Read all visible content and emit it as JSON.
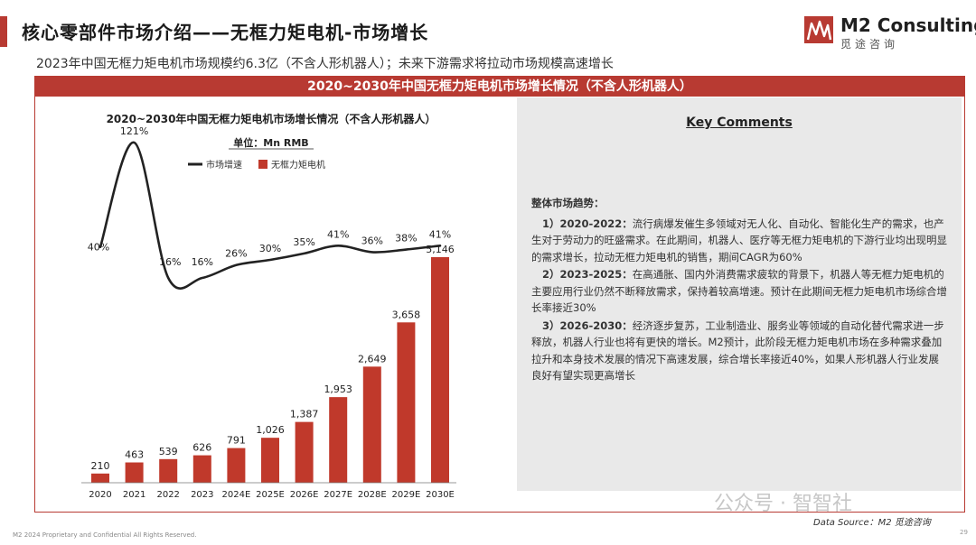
{
  "page": {
    "title": "核心零部件市场介绍——无框力矩电机-市场增长",
    "subtitle": "2023年中国无框力矩电机市场规模约6.3亿（不含人形机器人）；未来下游需求将拉动市场规模高速增长",
    "panel_title": "2020~2030年中国无框力矩电机市场增长情况（不含人形机器人）",
    "data_source": "Data Source：M2 觅途咨询",
    "footer": "M2 2024 Proprietary and Confidential All Rights Reserved.",
    "page_number": "29",
    "watermark": "公众号 · 智智社"
  },
  "logo": {
    "name": "M2 Consulting",
    "cn": "觅途咨询"
  },
  "colors": {
    "accent": "#b83a32",
    "bar": "#c0392b",
    "line": "#222222",
    "panel_bg": "#e9e9e9"
  },
  "chart_data": {
    "type": "bar",
    "title": "2020~2030年中国无框力矩电机市场增长情况（不含人形机器人）",
    "unit": "单位：Mn RMB",
    "categories": [
      "2020",
      "2021",
      "2022",
      "2023",
      "2024E",
      "2025E",
      "2026E",
      "2027E",
      "2028E",
      "2029E",
      "2030E"
    ],
    "series": [
      {
        "name": "无框力矩电机",
        "type": "bar",
        "values": [
          210,
          463,
          539,
          626,
          791,
          1026,
          1387,
          1953,
          2649,
          3658,
          5146
        ],
        "labels": [
          "210",
          "463",
          "539",
          "626",
          "791",
          "1,026",
          "1,387",
          "1,953",
          "2,649",
          "3,658",
          "5,146"
        ]
      },
      {
        "name": "市场增速",
        "type": "line",
        "values": [
          40,
          121,
          16,
          16,
          26,
          30,
          35,
          41,
          36,
          38,
          41
        ],
        "labels": [
          "40%",
          "121%",
          "16%",
          "16%",
          "26%",
          "30%",
          "35%",
          "41%",
          "36%",
          "38%",
          "41%"
        ]
      }
    ],
    "legend": [
      "市场增速",
      "无框力矩电机"
    ],
    "legend_position": "top-right",
    "grid": false
  },
  "comments": {
    "title": "Key Comments",
    "heading": "整体市场趋势：",
    "items": [
      {
        "label": "1）2020-2022：",
        "text": "流行病爆发催生多领域对无人化、自动化、智能化生产的需求，也产生对于劳动力的旺盛需求。在此期间，机器人、医疗等无框力矩电机的下游行业均出现明显的需求增长，拉动无框力矩电机的销售，期间CAGR为60%"
      },
      {
        "label": "2）2023-2025：",
        "text": "在高通胀、国内外消费需求疲软的背景下，机器人等无框力矩电机的主要应用行业仍然不断释放需求，保持着较高增速。预计在此期间无框力矩电机市场综合增长率接近30%"
      },
      {
        "label": "3）2026-2030：",
        "text": "经济逐步复苏，工业制造业、服务业等领域的自动化替代需求进一步释放，机器人行业也将有更快的增长。M2预计，此阶段无框力矩电机市场在多种需求叠加拉升和本身技术发展的情况下高速发展，综合增长率接近40%，如果人形机器人行业发展良好有望实现更高增长"
      }
    ]
  }
}
